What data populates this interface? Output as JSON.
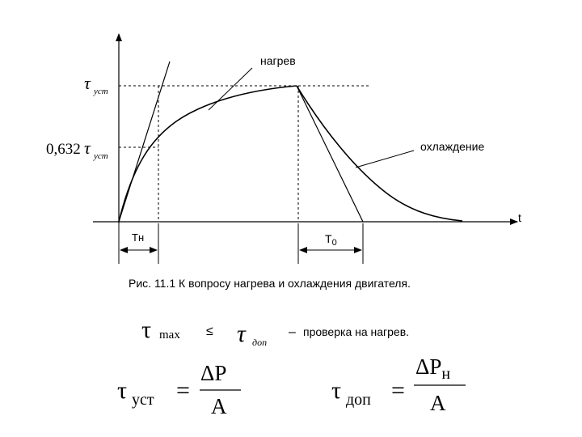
{
  "diagram": {
    "labels": {
      "heating": "нагрев",
      "cooling": "охлаждение",
      "t_axis": "t",
      "tau_sym": "τ",
      "tau_sub": "уст",
      "coef": "0,632",
      "tau_heat": "Тн",
      "tau_cool_T": "Т",
      "tau_cool_sub": "0"
    }
  },
  "caption": "Рис. 11.1 К вопросу нагрева и охлаждения двигателя.",
  "condition": {
    "tau": "τ",
    "max": "max",
    "le": "≤",
    "dop": "доп",
    "dash": "–",
    "text": "проверка на нагрев."
  },
  "formulas": {
    "tau": "τ",
    "ust": "уст",
    "dop": "доп",
    "eq": "=",
    "num1": "ΔP",
    "num2": "ΔP",
    "num2_sub": "н",
    "den": "A"
  }
}
